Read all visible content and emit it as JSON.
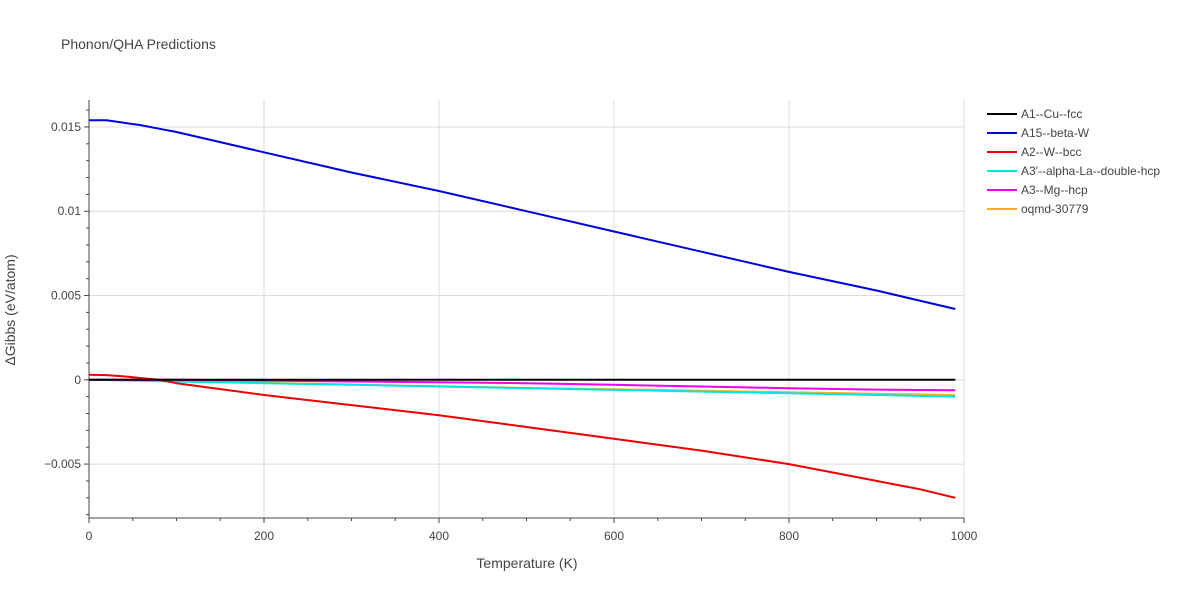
{
  "chart_data": {
    "type": "line",
    "title": "Phonon/QHA Predictions",
    "xlabel": "Temperature (K)",
    "ylabel": "ΔGibbs (eV/atom)",
    "xlim": [
      0,
      1000
    ],
    "ylim": [
      -0.0082,
      0.0166
    ],
    "x_ticks": [
      0,
      200,
      400,
      600,
      800,
      1000
    ],
    "x_tick_labels": [
      "0",
      "200",
      "400",
      "600",
      "800",
      "1000"
    ],
    "y_ticks": [
      -0.005,
      0,
      0.005,
      0.01,
      0.015
    ],
    "y_tick_labels": [
      "−0.005",
      "0",
      "0.005",
      "0.01",
      "0.015"
    ],
    "grid": true,
    "legend_position": "right",
    "series": [
      {
        "name": "A1--Cu--fcc",
        "color": "#000000",
        "x": [
          0,
          990
        ],
        "y": [
          0,
          0
        ]
      },
      {
        "name": "A15--beta-W",
        "color": "#0000dd",
        "x": [
          0,
          20,
          40,
          60,
          80,
          100,
          200,
          300,
          400,
          500,
          600,
          700,
          800,
          900,
          990
        ],
        "y": [
          0.0154,
          0.0154,
          0.01525,
          0.0151,
          0.0149,
          0.0147,
          0.0135,
          0.0123,
          0.0112,
          0.01,
          0.0088,
          0.0076,
          0.0064,
          0.0053,
          0.0042
        ]
      },
      {
        "name": "A2--W--bcc",
        "color": "#ee0000",
        "x": [
          0,
          20,
          40,
          60,
          80,
          100,
          200,
          300,
          400,
          500,
          600,
          700,
          800,
          850,
          900,
          950,
          990
        ],
        "y": [
          0.0003,
          0.00028,
          0.0002,
          0.0001,
          0.0,
          -0.0002,
          -0.0009,
          -0.0015,
          -0.0021,
          -0.0028,
          -0.0035,
          -0.0042,
          -0.005,
          -0.0055,
          -0.006,
          -0.0065,
          -0.007
        ]
      },
      {
        "name": "A3'--alpha-La--double-hcp",
        "color": "#00e5e5",
        "x": [
          0,
          100,
          200,
          300,
          400,
          500,
          600,
          700,
          800,
          900,
          990
        ],
        "y": [
          0.0,
          -0.0001,
          -0.0002,
          -0.0003,
          -0.0004,
          -0.0005,
          -0.0006,
          -0.0007,
          -0.0008,
          -0.0009,
          -0.001
        ]
      },
      {
        "name": "A3--Mg--hcp",
        "color": "#ee00ee",
        "x": [
          0,
          100,
          200,
          300,
          400,
          500,
          600,
          700,
          800,
          900,
          990
        ],
        "y": [
          0.0,
          0.0,
          -5e-05,
          -0.0001,
          -0.00015,
          -0.0002,
          -0.0003,
          -0.0004,
          -0.0005,
          -0.00058,
          -0.00062
        ]
      },
      {
        "name": "oqmd-30779",
        "color": "#f5b21f",
        "x": [
          0,
          100,
          200,
          300,
          400,
          500,
          600,
          700,
          800,
          900,
          990
        ],
        "y": [
          0.0,
          -8e-05,
          -0.00018,
          -0.00028,
          -0.00038,
          -0.00048,
          -0.00056,
          -0.00065,
          -0.00074,
          -0.00083,
          -0.0009
        ]
      }
    ]
  }
}
